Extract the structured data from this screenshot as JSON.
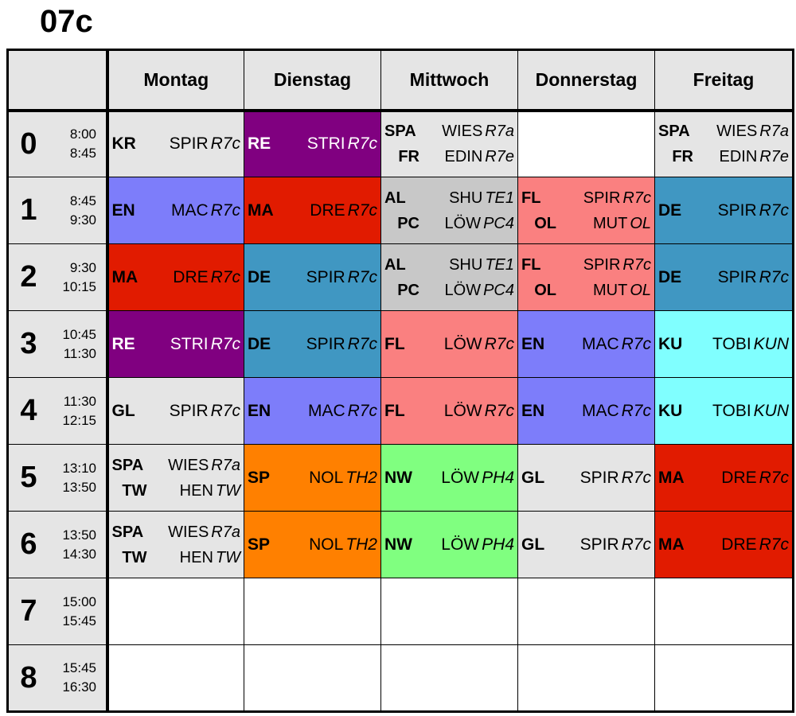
{
  "title": "07c",
  "days": [
    "Montag",
    "Dienstag",
    "Mittwoch",
    "Donnerstag",
    "Freitag"
  ],
  "colors": {
    "empty": "#ffffff",
    "grey": "#e5e5e5",
    "mid_grey": "#c8c8c8",
    "purple": "#800080",
    "red": "#e11b00",
    "blue_violet": "#7d7dfa",
    "steel_blue": "#4097c2",
    "salmon": "#fa8080",
    "cyan": "#80ffff",
    "orange": "#ff8000",
    "green": "#80ff80"
  },
  "periods": [
    {
      "num": "0",
      "start": "8:00",
      "end": "8:45",
      "cells": [
        {
          "bg": "#e5e5e5",
          "entries": [
            {
              "subject": "KR",
              "teacher": "SPIR",
              "room": "R7c"
            }
          ]
        },
        {
          "bg": "#800080",
          "text": "white",
          "entries": [
            {
              "subject": "RE",
              "teacher": "STRI",
              "room": "R7c"
            }
          ]
        },
        {
          "bg": "#e5e5e5",
          "entries": [
            {
              "subject": "SPA",
              "teacher": "WIES",
              "room": "R7a"
            },
            {
              "subject": "FR",
              "teacher": "EDIN",
              "room": "R7e"
            }
          ]
        },
        {
          "bg": "#ffffff",
          "entries": []
        },
        {
          "bg": "#e5e5e5",
          "entries": [
            {
              "subject": "SPA",
              "teacher": "WIES",
              "room": "R7a"
            },
            {
              "subject": "FR",
              "teacher": "EDIN",
              "room": "R7e"
            }
          ]
        }
      ]
    },
    {
      "num": "1",
      "start": "8:45",
      "end": "9:30",
      "cells": [
        {
          "bg": "#7d7dfa",
          "entries": [
            {
              "subject": "EN",
              "teacher": "MAC",
              "room": "R7c"
            }
          ]
        },
        {
          "bg": "#e11b00",
          "entries": [
            {
              "subject": "MA",
              "teacher": "DRE",
              "room": "R7c"
            }
          ]
        },
        {
          "bg": "#c8c8c8",
          "entries": [
            {
              "subject": "AL",
              "teacher": "SHU",
              "room": "TE1"
            },
            {
              "subject": "PC",
              "teacher": "LÖW",
              "room": "PC4"
            }
          ]
        },
        {
          "bg": "#fa8080",
          "entries": [
            {
              "subject": "FL",
              "teacher": "SPIR",
              "room": "R7c"
            },
            {
              "subject": "OL",
              "teacher": "MUT",
              "room": "OL"
            }
          ]
        },
        {
          "bg": "#4097c2",
          "entries": [
            {
              "subject": "DE",
              "teacher": "SPIR",
              "room": "R7c"
            }
          ]
        }
      ]
    },
    {
      "num": "2",
      "start": "9:30",
      "end": "10:15",
      "cells": [
        {
          "bg": "#e11b00",
          "entries": [
            {
              "subject": "MA",
              "teacher": "DRE",
              "room": "R7c"
            }
          ]
        },
        {
          "bg": "#4097c2",
          "entries": [
            {
              "subject": "DE",
              "teacher": "SPIR",
              "room": "R7c"
            }
          ]
        },
        {
          "bg": "#c8c8c8",
          "entries": [
            {
              "subject": "AL",
              "teacher": "SHU",
              "room": "TE1"
            },
            {
              "subject": "PC",
              "teacher": "LÖW",
              "room": "PC4"
            }
          ]
        },
        {
          "bg": "#fa8080",
          "entries": [
            {
              "subject": "FL",
              "teacher": "SPIR",
              "room": "R7c"
            },
            {
              "subject": "OL",
              "teacher": "MUT",
              "room": "OL"
            }
          ]
        },
        {
          "bg": "#4097c2",
          "entries": [
            {
              "subject": "DE",
              "teacher": "SPIR",
              "room": "R7c"
            }
          ]
        }
      ]
    },
    {
      "num": "3",
      "start": "10:45",
      "end": "11:30",
      "cells": [
        {
          "bg": "#800080",
          "text": "white",
          "entries": [
            {
              "subject": "RE",
              "teacher": "STRI",
              "room": "R7c"
            }
          ]
        },
        {
          "bg": "#4097c2",
          "entries": [
            {
              "subject": "DE",
              "teacher": "SPIR",
              "room": "R7c"
            }
          ]
        },
        {
          "bg": "#fa8080",
          "entries": [
            {
              "subject": "FL",
              "teacher": "LÖW",
              "room": "R7c"
            }
          ]
        },
        {
          "bg": "#7d7dfa",
          "entries": [
            {
              "subject": "EN",
              "teacher": "MAC",
              "room": "R7c"
            }
          ]
        },
        {
          "bg": "#80ffff",
          "entries": [
            {
              "subject": "KU",
              "teacher": "TOBI",
              "room": "KUN"
            }
          ]
        }
      ]
    },
    {
      "num": "4",
      "start": "11:30",
      "end": "12:15",
      "cells": [
        {
          "bg": "#e5e5e5",
          "entries": [
            {
              "subject": "GL",
              "teacher": "SPIR",
              "room": "R7c"
            }
          ]
        },
        {
          "bg": "#7d7dfa",
          "entries": [
            {
              "subject": "EN",
              "teacher": "MAC",
              "room": "R7c"
            }
          ]
        },
        {
          "bg": "#fa8080",
          "entries": [
            {
              "subject": "FL",
              "teacher": "LÖW",
              "room": "R7c"
            }
          ]
        },
        {
          "bg": "#7d7dfa",
          "entries": [
            {
              "subject": "EN",
              "teacher": "MAC",
              "room": "R7c"
            }
          ]
        },
        {
          "bg": "#80ffff",
          "entries": [
            {
              "subject": "KU",
              "teacher": "TOBI",
              "room": "KUN"
            }
          ]
        }
      ]
    },
    {
      "num": "5",
      "start": "13:10",
      "end": "13:50",
      "cells": [
        {
          "bg": "#e5e5e5",
          "entries": [
            {
              "subject": "SPA",
              "teacher": "WIES",
              "room": "R7a"
            },
            {
              "subject": "TW",
              "teacher": "HEN",
              "room": "TW"
            }
          ]
        },
        {
          "bg": "#ff8000",
          "entries": [
            {
              "subject": "SP",
              "teacher": "NOL",
              "room": "TH2"
            }
          ]
        },
        {
          "bg": "#80ff80",
          "entries": [
            {
              "subject": "NW",
              "teacher": "LÖW",
              "room": "PH4"
            }
          ]
        },
        {
          "bg": "#e5e5e5",
          "entries": [
            {
              "subject": "GL",
              "teacher": "SPIR",
              "room": "R7c"
            }
          ]
        },
        {
          "bg": "#e11b00",
          "entries": [
            {
              "subject": "MA",
              "teacher": "DRE",
              "room": "R7c"
            }
          ]
        }
      ]
    },
    {
      "num": "6",
      "start": "13:50",
      "end": "14:30",
      "cells": [
        {
          "bg": "#e5e5e5",
          "entries": [
            {
              "subject": "SPA",
              "teacher": "WIES",
              "room": "R7a"
            },
            {
              "subject": "TW",
              "teacher": "HEN",
              "room": "TW"
            }
          ]
        },
        {
          "bg": "#ff8000",
          "entries": [
            {
              "subject": "SP",
              "teacher": "NOL",
              "room": "TH2"
            }
          ]
        },
        {
          "bg": "#80ff80",
          "entries": [
            {
              "subject": "NW",
              "teacher": "LÖW",
              "room": "PH4"
            }
          ]
        },
        {
          "bg": "#e5e5e5",
          "entries": [
            {
              "subject": "GL",
              "teacher": "SPIR",
              "room": "R7c"
            }
          ]
        },
        {
          "bg": "#e11b00",
          "entries": [
            {
              "subject": "MA",
              "teacher": "DRE",
              "room": "R7c"
            }
          ]
        }
      ]
    },
    {
      "num": "7",
      "start": "15:00",
      "end": "15:45",
      "cells": [
        {
          "bg": "#ffffff",
          "entries": []
        },
        {
          "bg": "#ffffff",
          "entries": []
        },
        {
          "bg": "#ffffff",
          "entries": []
        },
        {
          "bg": "#ffffff",
          "entries": []
        },
        {
          "bg": "#ffffff",
          "entries": []
        }
      ]
    },
    {
      "num": "8",
      "start": "15:45",
      "end": "16:30",
      "cells": [
        {
          "bg": "#ffffff",
          "entries": []
        },
        {
          "bg": "#ffffff",
          "entries": []
        },
        {
          "bg": "#ffffff",
          "entries": []
        },
        {
          "bg": "#ffffff",
          "entries": []
        },
        {
          "bg": "#ffffff",
          "entries": []
        }
      ]
    }
  ]
}
